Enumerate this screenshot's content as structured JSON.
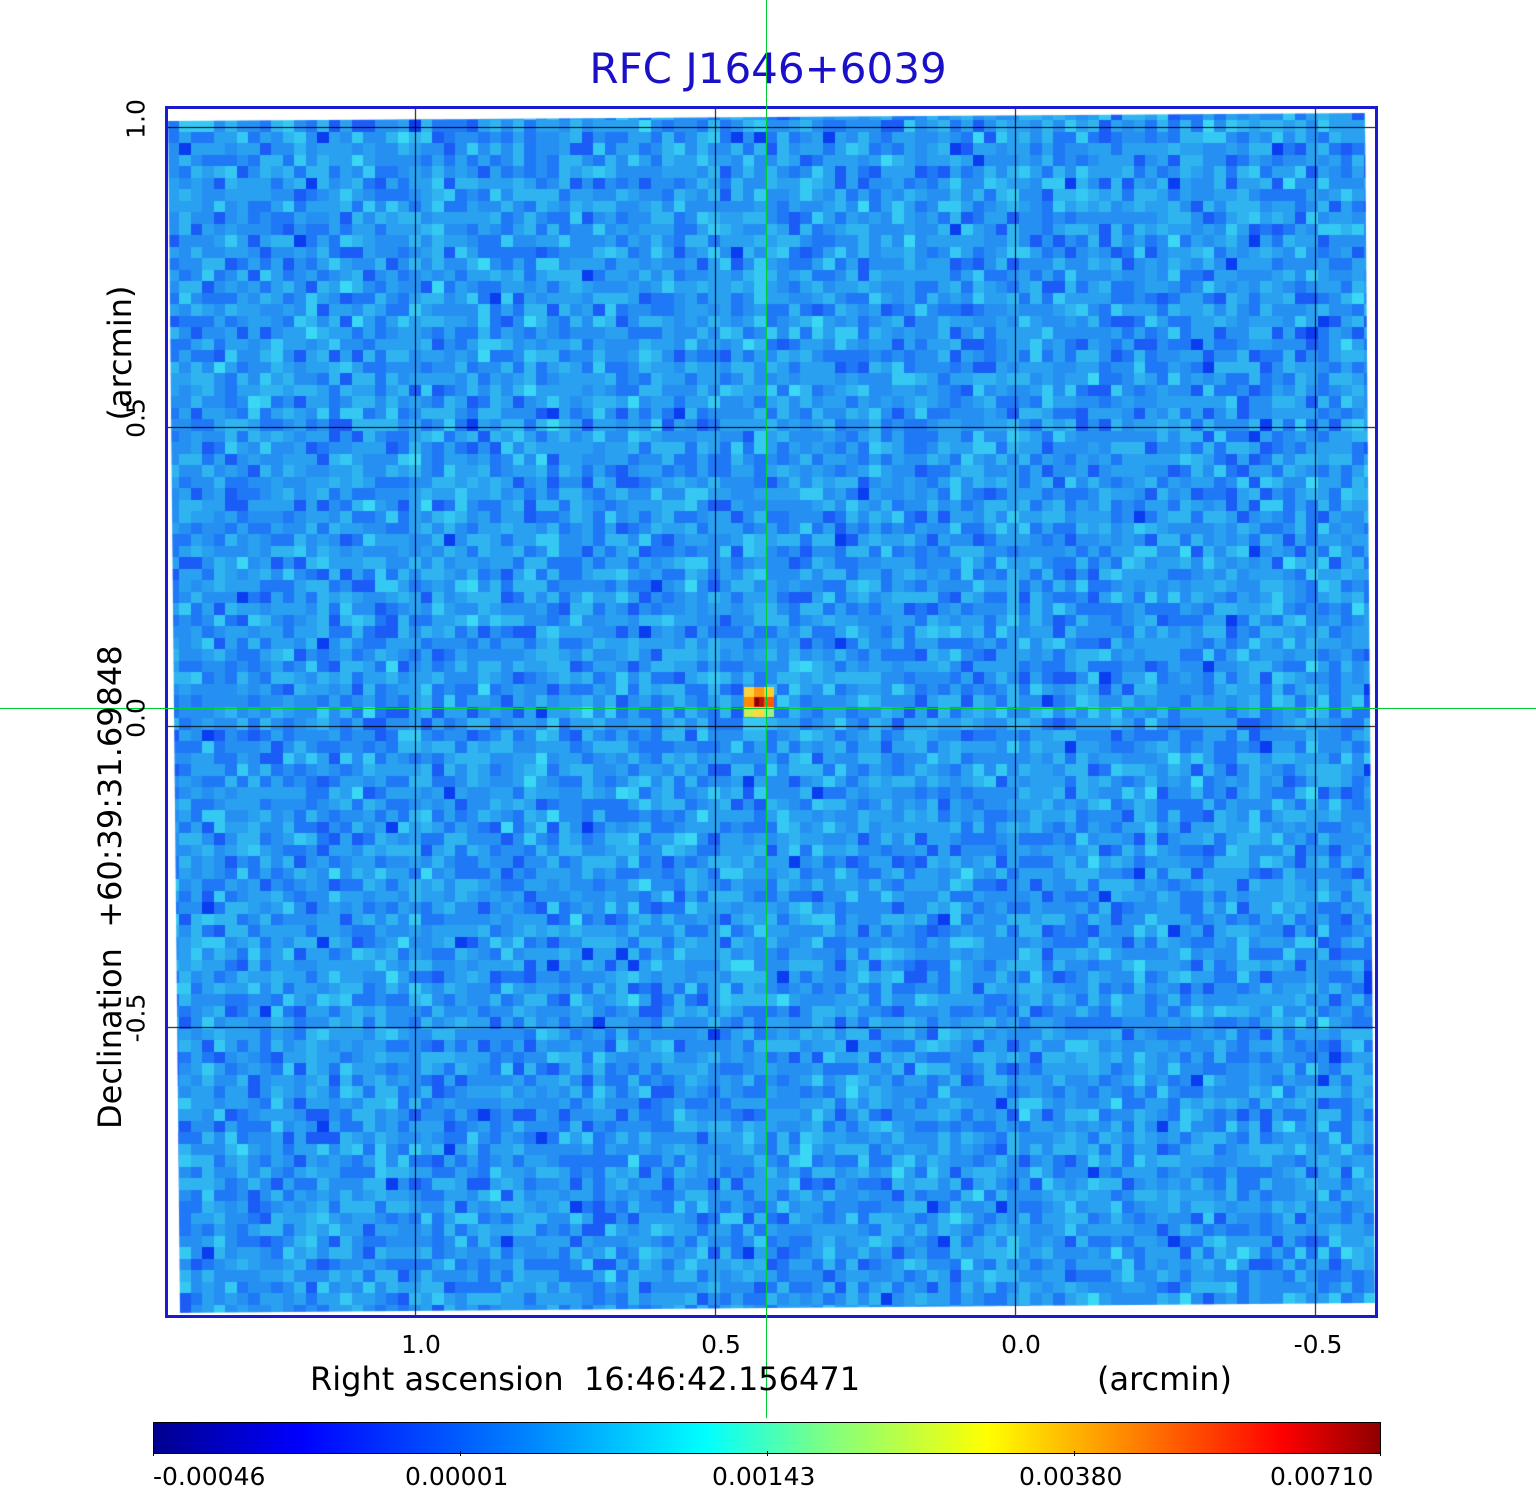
{
  "title": "RFC J1646+6039",
  "x_axis": {
    "label": "Right ascension  16:46:42.156471",
    "unit_label": "(arcmin)",
    "ticks": [
      "1.0",
      "0.5",
      "0.0",
      "-0.5"
    ]
  },
  "y_axis": {
    "label": "Declination  +60:39:31.69848",
    "unit_label": "(arcmin)",
    "ticks": [
      "1.0",
      "0.5",
      "0.0",
      "-0.5"
    ]
  },
  "colorbar": {
    "ticks": [
      "-0.00046",
      "0.00001",
      "0.00143",
      "0.00380",
      "0.00710"
    ]
  },
  "colors": {
    "title": "#1a10c8",
    "frame": "#1a1ad0",
    "crosshair": "#00cc33",
    "background_map": "#2aa0f0"
  }
}
